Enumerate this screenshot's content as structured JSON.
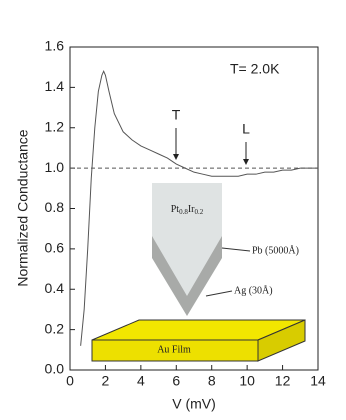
{
  "chart_data": {
    "type": "line",
    "x": [
      0.6,
      0.8,
      1.0,
      1.2,
      1.4,
      1.6,
      1.8,
      1.9,
      2.0,
      2.2,
      2.5,
      3.0,
      3.5,
      4.0,
      4.5,
      5.0,
      5.5,
      6.0,
      6.5,
      7.0,
      7.5,
      8.0,
      8.5,
      9.0,
      9.5,
      10.0,
      10.5,
      11.0,
      11.5,
      12.0,
      12.5,
      13.0,
      13.5,
      14.0
    ],
    "series": [
      {
        "name": "T= 2.0K",
        "color": "#555555",
        "values": [
          0.12,
          0.3,
          0.6,
          0.95,
          1.2,
          1.38,
          1.46,
          1.48,
          1.46,
          1.38,
          1.27,
          1.18,
          1.14,
          1.11,
          1.09,
          1.07,
          1.05,
          1.02,
          1.0,
          0.98,
          0.97,
          0.96,
          0.96,
          0.96,
          0.96,
          0.97,
          0.97,
          0.98,
          0.98,
          0.99,
          0.99,
          1.0,
          1.0,
          1.0
        ]
      }
    ],
    "xlim": [
      0,
      14
    ],
    "xticks": [
      0,
      2,
      4,
      6,
      8,
      10,
      12,
      14
    ],
    "ylim": [
      0,
      1.6
    ],
    "yticks": [
      {
        "value": 0,
        "label": "0.0"
      },
      0.2,
      0.4,
      0.6,
      0.8,
      {
        "value": 1,
        "label": "1.0"
      },
      1.2,
      1.4,
      1.6
    ],
    "reference_line": 1.0,
    "x_label": "V (mV)",
    "y_label": "Normalized Conductance",
    "annotations": {
      "temperature": "T= 2.0K",
      "t_marker": "T",
      "l_marker": "L"
    },
    "inset": {
      "tip": [
        "Pt",
        "0.8",
        "Ir",
        "0.2"
      ],
      "coating": "Pb (5000Å)",
      "layer": "Ag (30Å)",
      "film": "Au Film"
    }
  }
}
